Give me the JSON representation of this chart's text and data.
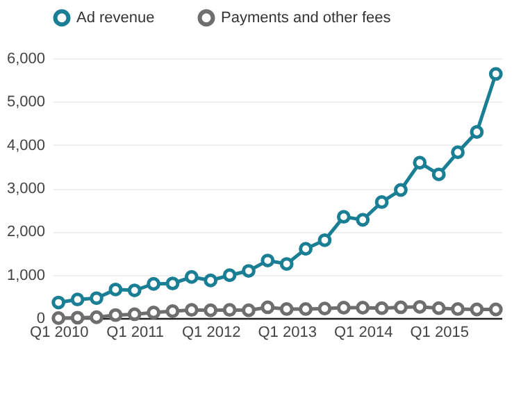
{
  "chart_data": {
    "type": "line",
    "categories": [
      "Q1 2010",
      null,
      null,
      null,
      "Q1 2011",
      null,
      null,
      null,
      "Q1 2012",
      null,
      null,
      null,
      "Q1 2013",
      null,
      null,
      null,
      "Q1 2014",
      null,
      null,
      null,
      "Q1 2015",
      null,
      null,
      null
    ],
    "series": [
      {
        "name": "Ad revenue",
        "color": "#1a7f95",
        "values": [
          360,
          430,
          460,
          660,
          640,
          790,
          800,
          950,
          870,
          990,
          1090,
          1330,
          1250,
          1600,
          1800,
          2340,
          2270,
          2680,
          2960,
          3590,
          3320,
          3830,
          4300,
          5640
        ]
      },
      {
        "name": "Payments and other fees",
        "color": "#6e6e6e",
        "values": [
          0,
          10,
          20,
          70,
          90,
          130,
          160,
          190,
          180,
          190,
          180,
          250,
          210,
          210,
          220,
          240,
          240,
          230,
          250,
          260,
          230,
          210,
          200,
          200
        ]
      }
    ],
    "ylim": [
      0,
      6000
    ],
    "yticks": [
      0,
      {
        "value": 1000,
        "label": "1,000"
      },
      {
        "value": 2000,
        "label": "2,000"
      },
      {
        "value": 3000,
        "label": "3,000"
      },
      {
        "value": 4000,
        "label": "4,000"
      },
      {
        "value": 5000,
        "label": "5,000"
      },
      {
        "value": 6000,
        "label": "6,000"
      }
    ],
    "grid": "y",
    "legend": "top",
    "marker": "circle",
    "line_style": "solid"
  }
}
